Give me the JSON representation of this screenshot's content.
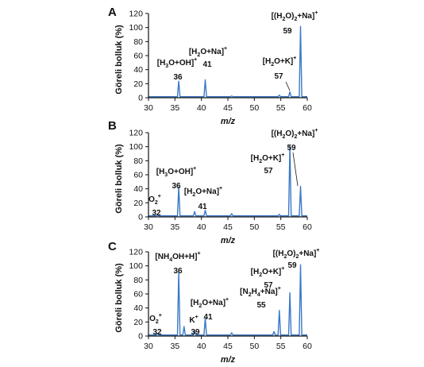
{
  "chart_data": [
    {
      "panel": "A",
      "type": "line",
      "ylabel": "Göreli bolluk (%)",
      "xlabel": "m/z",
      "xlim": [
        30,
        60
      ],
      "ylim": [
        0,
        120
      ],
      "xticks": [
        30,
        35,
        40,
        45,
        50,
        55,
        60
      ],
      "yticks": [
        0,
        20,
        40,
        60,
        80,
        100,
        120
      ],
      "peaks": [
        {
          "mz": 36,
          "intensity": 22,
          "label": "[H3O+OH]+",
          "number": "36"
        },
        {
          "mz": 41,
          "intensity": 24,
          "label": "[H2O+Na]+",
          "number": "41"
        },
        {
          "mz": 46,
          "intensity": 1,
          "label": "",
          "number": ""
        },
        {
          "mz": 55,
          "intensity": 2,
          "label": "",
          "number": ""
        },
        {
          "mz": 57,
          "intensity": 7,
          "label": "[H2O+K]+",
          "number": "57"
        },
        {
          "mz": 59,
          "intensity": 100,
          "label": "[(H2O)2+Na]+",
          "number": "59"
        }
      ]
    },
    {
      "panel": "B",
      "type": "line",
      "ylabel": "Göreli bolluk (%)",
      "xlabel": "m/z",
      "xlim": [
        30,
        60
      ],
      "ylim": [
        0,
        120
      ],
      "xticks": [
        30,
        35,
        40,
        45,
        50,
        55,
        60
      ],
      "yticks": [
        0,
        20,
        40,
        60,
        80,
        100,
        120
      ],
      "peaks": [
        {
          "mz": 32,
          "intensity": 1,
          "label": "O2+",
          "number": "32"
        },
        {
          "mz": 36,
          "intensity": 41,
          "label": "[H3O+OH]+",
          "number": "36"
        },
        {
          "mz": 39,
          "intensity": 6,
          "label": "",
          "number": ""
        },
        {
          "mz": 41,
          "intensity": 8,
          "label": "[H2O+Na]+",
          "number": "41"
        },
        {
          "mz": 46,
          "intensity": 3,
          "label": "",
          "number": ""
        },
        {
          "mz": 55,
          "intensity": 2,
          "label": "",
          "number": ""
        },
        {
          "mz": 57,
          "intensity": 100,
          "label": "[H2O+K]+",
          "number": "57"
        },
        {
          "mz": 59,
          "intensity": 42,
          "label": "[(H2O)2+Na]+",
          "number": "59"
        }
      ]
    },
    {
      "panel": "C",
      "type": "line",
      "ylabel": "Göreli bolluk (%)",
      "xlabel": "m/z",
      "xlim": [
        30,
        60
      ],
      "ylim": [
        0,
        120
      ],
      "xticks": [
        30,
        35,
        40,
        45,
        50,
        55,
        60
      ],
      "yticks": [
        0,
        20,
        40,
        60,
        80,
        100,
        120
      ],
      "peaks": [
        {
          "mz": 32,
          "intensity": 2,
          "label": "O2+",
          "number": "32"
        },
        {
          "mz": 36,
          "intensity": 90,
          "label": "[NH4OH+H]+",
          "number": "36"
        },
        {
          "mz": 37,
          "intensity": 12,
          "label": "",
          "number": ""
        },
        {
          "mz": 39,
          "intensity": 6,
          "label": "K+",
          "number": "39"
        },
        {
          "mz": 41,
          "intensity": 24,
          "label": "[H2O+Na]+",
          "number": "41"
        },
        {
          "mz": 46,
          "intensity": 3,
          "label": "",
          "number": ""
        },
        {
          "mz": 54,
          "intensity": 5,
          "label": "",
          "number": ""
        },
        {
          "mz": 55,
          "intensity": 35,
          "label": "[N2H4+Na]+",
          "number": "55"
        },
        {
          "mz": 57,
          "intensity": 60,
          "label": "[H2O+K]+",
          "number": "57"
        },
        {
          "mz": 59,
          "intensity": 100,
          "label": "[(H2O)2+Na]+",
          "number": "59"
        }
      ]
    }
  ]
}
